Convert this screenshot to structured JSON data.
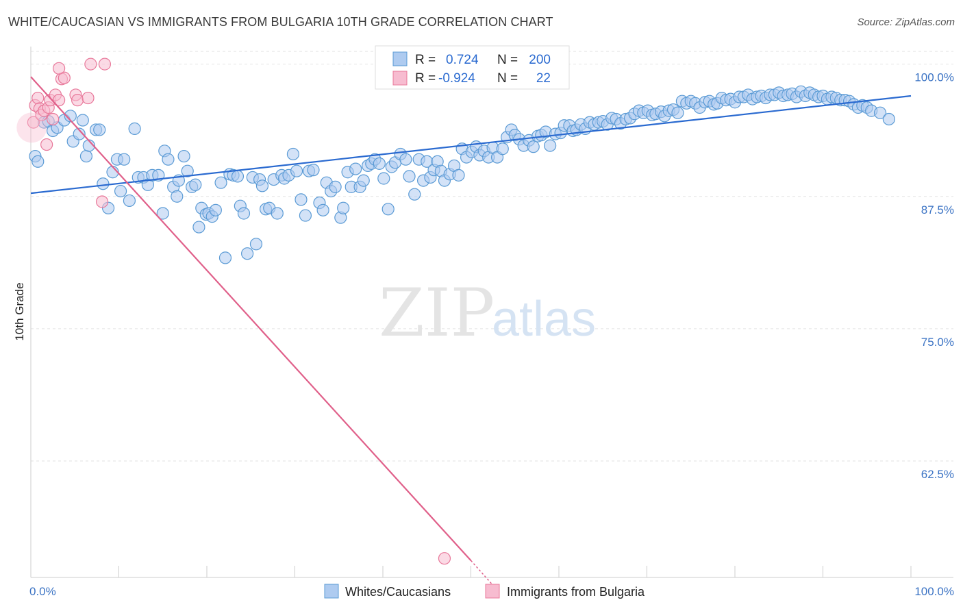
{
  "title": "WHITE/CAUCASIAN VS IMMIGRANTS FROM BULGARIA 10TH GRADE CORRELATION CHART",
  "source": "Source: ZipAtlas.com",
  "watermark": {
    "zip": "ZIP",
    "atlas": "atlas"
  },
  "colors": {
    "blue": "#5b9bd5",
    "blue_fill": "#aecbf0",
    "blue_line": "#2a6ad0",
    "pink": "#e8789a",
    "pink_fill": "#f7bcd0",
    "pink_line": "#e0608a",
    "tick_text": "#3b73c4"
  },
  "legend": {
    "rows": [
      {
        "r_label": "R =",
        "r_value": "0.724",
        "n_label": "N =",
        "n_value": "200"
      },
      {
        "r_label": "R =",
        "r_value": "-0.924",
        "n_label": "N =",
        "n_value": "22"
      }
    ]
  },
  "bottom_legend": [
    "Whites/Caucasians",
    "Immigrants from Bulgaria"
  ],
  "chart_data": {
    "type": "scatter",
    "xlabel": "",
    "ylabel": "10th Grade",
    "xlim": [
      0,
      100
    ],
    "ylim": [
      51.5,
      102.5
    ],
    "x_tick_labels": [
      "0.0%",
      "100.0%"
    ],
    "y_ticks": [
      62.5,
      75.0,
      87.5,
      100.0
    ],
    "y_tick_labels": [
      "62.5%",
      "75.0%",
      "87.5%",
      "100.0%"
    ],
    "grid": true,
    "series": [
      {
        "name": "Whites/Caucasians",
        "trend": {
          "x": [
            0,
            100
          ],
          "y": [
            87.8,
            97.0
          ]
        },
        "points": [
          [
            0.5,
            91.3
          ],
          [
            0.8,
            90.8
          ],
          [
            1.5,
            94.5
          ],
          [
            2.0,
            94.6
          ],
          [
            2.5,
            93.7
          ],
          [
            3.0,
            94.0
          ],
          [
            3.8,
            94.7
          ],
          [
            4.5,
            95.1
          ],
          [
            4.8,
            92.7
          ],
          [
            5.5,
            93.4
          ],
          [
            5.9,
            94.7
          ],
          [
            6.3,
            91.3
          ],
          [
            6.6,
            92.3
          ],
          [
            7.4,
            93.8
          ],
          [
            7.8,
            93.8
          ],
          [
            8.2,
            88.7
          ],
          [
            8.8,
            86.4
          ],
          [
            9.3,
            89.8
          ],
          [
            9.8,
            91.0
          ],
          [
            10.2,
            88.0
          ],
          [
            10.6,
            91.0
          ],
          [
            11.2,
            87.1
          ],
          [
            11.8,
            93.9
          ],
          [
            12.2,
            89.3
          ],
          [
            12.8,
            89.3
          ],
          [
            13.3,
            88.6
          ],
          [
            13.8,
            89.5
          ],
          [
            14.5,
            89.5
          ],
          [
            15.0,
            85.9
          ],
          [
            15.2,
            91.8
          ],
          [
            15.6,
            91.0
          ],
          [
            16.2,
            88.4
          ],
          [
            16.6,
            87.5
          ],
          [
            16.8,
            89.0
          ],
          [
            17.4,
            91.3
          ],
          [
            17.8,
            89.9
          ],
          [
            18.3,
            88.4
          ],
          [
            18.7,
            88.6
          ],
          [
            19.1,
            84.6
          ],
          [
            19.4,
            86.4
          ],
          [
            19.9,
            85.8
          ],
          [
            20.2,
            85.9
          ],
          [
            20.6,
            85.6
          ],
          [
            21.0,
            86.2
          ],
          [
            21.6,
            88.8
          ],
          [
            22.1,
            81.7
          ],
          [
            22.6,
            89.6
          ],
          [
            23.0,
            89.5
          ],
          [
            23.5,
            89.4
          ],
          [
            23.8,
            86.6
          ],
          [
            24.2,
            85.9
          ],
          [
            24.6,
            82.1
          ],
          [
            25.2,
            89.3
          ],
          [
            25.6,
            83.0
          ],
          [
            26.0,
            89.1
          ],
          [
            26.3,
            88.5
          ],
          [
            26.7,
            86.3
          ],
          [
            27.1,
            86.4
          ],
          [
            27.6,
            89.1
          ],
          [
            28.0,
            85.9
          ],
          [
            28.5,
            89.5
          ],
          [
            28.8,
            89.2
          ],
          [
            29.3,
            89.5
          ],
          [
            29.8,
            91.5
          ],
          [
            30.2,
            89.9
          ],
          [
            30.7,
            87.2
          ],
          [
            31.2,
            85.7
          ],
          [
            31.6,
            89.9
          ],
          [
            32.1,
            90.0
          ],
          [
            32.8,
            86.9
          ],
          [
            33.2,
            86.2
          ],
          [
            33.6,
            88.8
          ],
          [
            34.1,
            88.0
          ],
          [
            34.6,
            88.4
          ],
          [
            35.2,
            85.5
          ],
          [
            35.5,
            86.4
          ],
          [
            36.0,
            89.8
          ],
          [
            36.4,
            88.4
          ],
          [
            36.9,
            90.1
          ],
          [
            37.4,
            88.4
          ],
          [
            37.8,
            89.0
          ],
          [
            38.3,
            90.4
          ],
          [
            38.7,
            90.6
          ],
          [
            39.1,
            91.0
          ],
          [
            39.6,
            90.6
          ],
          [
            40.1,
            89.2
          ],
          [
            40.6,
            86.3
          ],
          [
            41.0,
            90.3
          ],
          [
            41.4,
            90.7
          ],
          [
            42.0,
            91.5
          ],
          [
            42.6,
            91.0
          ],
          [
            43.0,
            89.4
          ],
          [
            43.6,
            87.7
          ],
          [
            44.1,
            91.0
          ],
          [
            44.6,
            89.0
          ],
          [
            45.0,
            90.8
          ],
          [
            45.4,
            89.3
          ],
          [
            45.8,
            90.0
          ],
          [
            46.2,
            90.8
          ],
          [
            46.6,
            89.9
          ],
          [
            47.0,
            89.0
          ],
          [
            47.6,
            89.6
          ],
          [
            48.1,
            90.4
          ],
          [
            48.6,
            89.5
          ],
          [
            49.0,
            92.0
          ],
          [
            49.5,
            91.2
          ],
          [
            50.1,
            91.7
          ],
          [
            50.6,
            92.2
          ],
          [
            51.0,
            91.4
          ],
          [
            51.5,
            91.8
          ],
          [
            52.0,
            91.2
          ],
          [
            52.5,
            92.1
          ],
          [
            53.0,
            91.2
          ],
          [
            53.6,
            92.0
          ],
          [
            54.1,
            93.1
          ],
          [
            54.6,
            93.8
          ],
          [
            55.0,
            93.3
          ],
          [
            55.5,
            92.9
          ],
          [
            56.0,
            92.3
          ],
          [
            56.6,
            92.8
          ],
          [
            57.1,
            92.2
          ],
          [
            57.6,
            93.2
          ],
          [
            58.0,
            93.3
          ],
          [
            58.5,
            93.6
          ],
          [
            59.0,
            92.3
          ],
          [
            59.6,
            93.4
          ],
          [
            60.2,
            93.5
          ],
          [
            60.6,
            94.2
          ],
          [
            61.2,
            94.2
          ],
          [
            61.6,
            93.7
          ],
          [
            62.0,
            93.8
          ],
          [
            62.5,
            94.3
          ],
          [
            63.0,
            93.9
          ],
          [
            63.5,
            94.5
          ],
          [
            64.0,
            94.3
          ],
          [
            64.5,
            94.5
          ],
          [
            65.0,
            94.6
          ],
          [
            65.5,
            94.3
          ],
          [
            66.0,
            94.9
          ],
          [
            66.5,
            94.8
          ],
          [
            67.0,
            94.4
          ],
          [
            67.6,
            94.8
          ],
          [
            68.1,
            94.9
          ],
          [
            68.6,
            95.3
          ],
          [
            69.1,
            95.6
          ],
          [
            69.6,
            95.4
          ],
          [
            70.1,
            95.6
          ],
          [
            70.6,
            95.2
          ],
          [
            71.0,
            95.3
          ],
          [
            71.6,
            95.5
          ],
          [
            72.0,
            95.1
          ],
          [
            72.5,
            95.6
          ],
          [
            73.0,
            95.7
          ],
          [
            73.5,
            95.4
          ],
          [
            74.0,
            96.5
          ],
          [
            74.5,
            96.3
          ],
          [
            75.0,
            96.5
          ],
          [
            75.5,
            96.3
          ],
          [
            76.0,
            95.9
          ],
          [
            76.6,
            96.4
          ],
          [
            77.1,
            96.5
          ],
          [
            77.6,
            96.2
          ],
          [
            78.0,
            96.3
          ],
          [
            78.5,
            96.8
          ],
          [
            79.0,
            96.6
          ],
          [
            79.5,
            96.7
          ],
          [
            80.0,
            96.4
          ],
          [
            80.5,
            96.9
          ],
          [
            81.0,
            96.9
          ],
          [
            81.5,
            97.1
          ],
          [
            82.0,
            96.7
          ],
          [
            82.5,
            96.9
          ],
          [
            83.0,
            97.0
          ],
          [
            83.5,
            96.8
          ],
          [
            84.0,
            97.1
          ],
          [
            84.5,
            97.1
          ],
          [
            85.0,
            97.3
          ],
          [
            85.5,
            97.0
          ],
          [
            86.0,
            97.1
          ],
          [
            86.5,
            97.2
          ],
          [
            87.0,
            96.9
          ],
          [
            87.5,
            97.4
          ],
          [
            88.0,
            97.0
          ],
          [
            88.5,
            97.3
          ],
          [
            89.0,
            97.1
          ],
          [
            89.5,
            96.9
          ],
          [
            90.0,
            97.0
          ],
          [
            90.5,
            96.7
          ],
          [
            91.0,
            96.9
          ],
          [
            91.5,
            96.8
          ],
          [
            92.0,
            96.6
          ],
          [
            92.5,
            96.6
          ],
          [
            93.0,
            96.5
          ],
          [
            93.5,
            96.2
          ],
          [
            94.0,
            95.9
          ],
          [
            94.5,
            96.1
          ],
          [
            95.0,
            95.9
          ],
          [
            95.5,
            95.6
          ],
          [
            96.5,
            95.4
          ],
          [
            97.5,
            94.8
          ]
        ]
      },
      {
        "name": "Immigrants from Bulgaria",
        "trend": {
          "x": [
            0,
            50
          ],
          "y": [
            98.8,
            53.1
          ]
        },
        "trend_dashed": {
          "x": [
            50,
            53
          ],
          "y": [
            53.1,
            50.3
          ]
        },
        "points": [
          [
            0.3,
            94.5
          ],
          [
            0.5,
            96.1
          ],
          [
            0.8,
            96.8
          ],
          [
            1.0,
            95.8
          ],
          [
            1.2,
            95.2
          ],
          [
            1.5,
            95.6
          ],
          [
            1.8,
            92.4
          ],
          [
            2.0,
            95.9
          ],
          [
            2.2,
            96.6
          ],
          [
            2.5,
            94.8
          ],
          [
            2.8,
            97.1
          ],
          [
            3.2,
            96.6
          ],
          [
            3.5,
            98.6
          ],
          [
            3.8,
            98.7
          ],
          [
            3.2,
            99.6
          ],
          [
            5.1,
            97.1
          ],
          [
            5.3,
            96.6
          ],
          [
            6.8,
            100.0
          ],
          [
            8.4,
            100.0
          ],
          [
            6.5,
            96.8
          ],
          [
            8.1,
            87.0
          ],
          [
            47.0,
            53.3
          ]
        ]
      }
    ]
  }
}
